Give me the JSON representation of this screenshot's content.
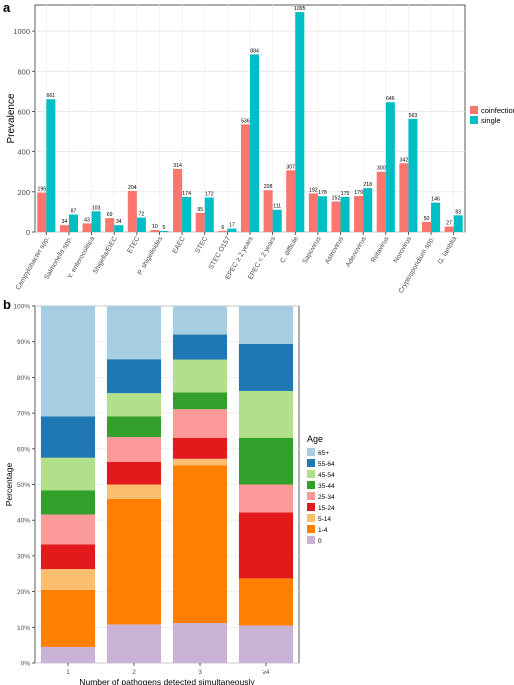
{
  "colors": {
    "coinfection": "#f8766d",
    "single": "#00bfc4",
    "age": {
      "65+": "#a6cee3",
      "55-64": "#1f78b4",
      "45-54": "#b2df8a",
      "35-44": "#33a02c",
      "25-34": "#fb9a99",
      "15-24": "#e31a1c",
      "5-14": "#fdbf6f",
      "1-4": "#ff7f00",
      "0": "#cab2d6"
    }
  },
  "chart_data": [
    {
      "panel": "a",
      "type": "bar",
      "ylabel": "Prevalence",
      "ylim": [
        0,
        1130
      ],
      "yticks": [
        0,
        200,
        400,
        600,
        800,
        1000
      ],
      "grid": true,
      "legend_position": "right",
      "categories": [
        "Campylobacter spp.",
        "Salmonella spp.",
        "Y. enterocolitica",
        "Shigella/EIEC",
        "ETEC",
        "P. shigelloides",
        "EAEC",
        "STEC",
        "STEC O157",
        "EPEC ≥ 2 years",
        "EPEC < 2 years",
        "C. difficile",
        "Sapovirus",
        "Astrovirus",
        "Adenovirus",
        "Rotavirus",
        "Norovirus",
        "Cryptosporidium spp.",
        "G. lamblia"
      ],
      "series": [
        {
          "name": "coinfection",
          "values": [
            196,
            34,
            43,
            69,
            204,
            10,
            314,
            95,
            6,
            536,
            208,
            307,
            192,
            152,
            179,
            300,
            342,
            50,
            27
          ]
        },
        {
          "name": "single",
          "values": [
            661,
            87,
            103,
            34,
            72,
            5,
            174,
            172,
            17,
            884,
            111,
            1095,
            178,
            175,
            218,
            646,
            563,
            146,
            83
          ]
        }
      ]
    },
    {
      "panel": "b",
      "type": "bar",
      "stacked": true,
      "xlabel": "Number of pathogens detected simultaneously",
      "ylabel": "Percentage",
      "ylim": [
        0,
        100
      ],
      "yticks": [
        "0%",
        "10%",
        "20%",
        "30%",
        "40%",
        "50%",
        "60%",
        "70%",
        "80%",
        "90%",
        "100%"
      ],
      "legend_title": "Age",
      "legend_position": "right",
      "categories": [
        "1",
        "2",
        "3",
        "≥4"
      ],
      "series": [
        {
          "name": "0",
          "values": [
            4.5,
            10.8,
            11.2,
            10.5
          ]
        },
        {
          "name": "1-4",
          "values": [
            16.0,
            35.2,
            44.2,
            13.2
          ]
        },
        {
          "name": "5-14",
          "values": [
            5.8,
            4.0,
            1.8,
            0
          ]
        },
        {
          "name": "15-24",
          "values": [
            6.9,
            6.3,
            5.9,
            18.5
          ]
        },
        {
          "name": "25-34",
          "values": [
            8.4,
            7.0,
            8.0,
            7.8
          ]
        },
        {
          "name": "35-44",
          "values": [
            6.8,
            5.8,
            4.7,
            13.1
          ]
        },
        {
          "name": "45-54",
          "values": [
            9.1,
            6.5,
            9.2,
            13.1
          ]
        },
        {
          "name": "55-64",
          "values": [
            11.6,
            9.5,
            7.0,
            13.2
          ]
        },
        {
          "name": "65+",
          "values": [
            30.9,
            14.9,
            8.0,
            10.6
          ]
        }
      ]
    }
  ]
}
